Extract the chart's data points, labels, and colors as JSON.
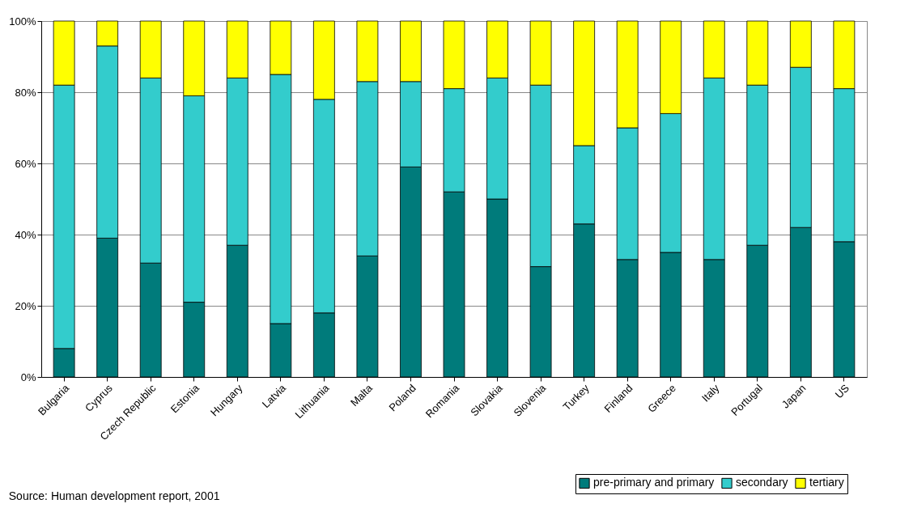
{
  "chart_data": {
    "type": "bar",
    "stacked": true,
    "categories": [
      "Bulgaria",
      "Cyprus",
      "Czech Republic",
      "Estonia",
      "Hungary",
      "Latvia",
      "Lithuania",
      "Malta",
      "Poland",
      "Romania",
      "Slovakia",
      "Slovenia",
      "Turkey",
      "Finland",
      "Greece",
      "Italy",
      "Portugal",
      "Japan",
      "US"
    ],
    "series": [
      {
        "name": "pre-primary and primary",
        "color": "#007b7b",
        "values": [
          8,
          39,
          32,
          21,
          37,
          15,
          18,
          34,
          59,
          52,
          50,
          31,
          43,
          33,
          35,
          33,
          37,
          42,
          38
        ]
      },
      {
        "name": "secondary",
        "color": "#33cccc",
        "values": [
          74,
          54,
          52,
          58,
          47,
          70,
          60,
          49,
          24,
          29,
          34,
          51,
          22,
          37,
          39,
          51,
          45,
          45,
          43
        ]
      },
      {
        "name": "tertiary",
        "color": "#ffff00",
        "values": [
          18,
          7,
          16,
          21,
          16,
          15,
          22,
          17,
          17,
          19,
          16,
          18,
          35,
          30,
          26,
          16,
          18,
          13,
          19
        ]
      }
    ],
    "ylim": [
      0,
      100
    ],
    "yticks": [
      {
        "value": 0,
        "label": "0%"
      },
      {
        "value": 20,
        "label": "20%"
      },
      {
        "value": 40,
        "label": "40%"
      },
      {
        "value": 60,
        "label": "60%"
      },
      {
        "value": 80,
        "label": "80%"
      },
      {
        "value": 100,
        "label": "100%"
      }
    ],
    "grid": "y",
    "legend": "bottom right",
    "annotations": [
      "Source: Human development report, 2001"
    ]
  }
}
